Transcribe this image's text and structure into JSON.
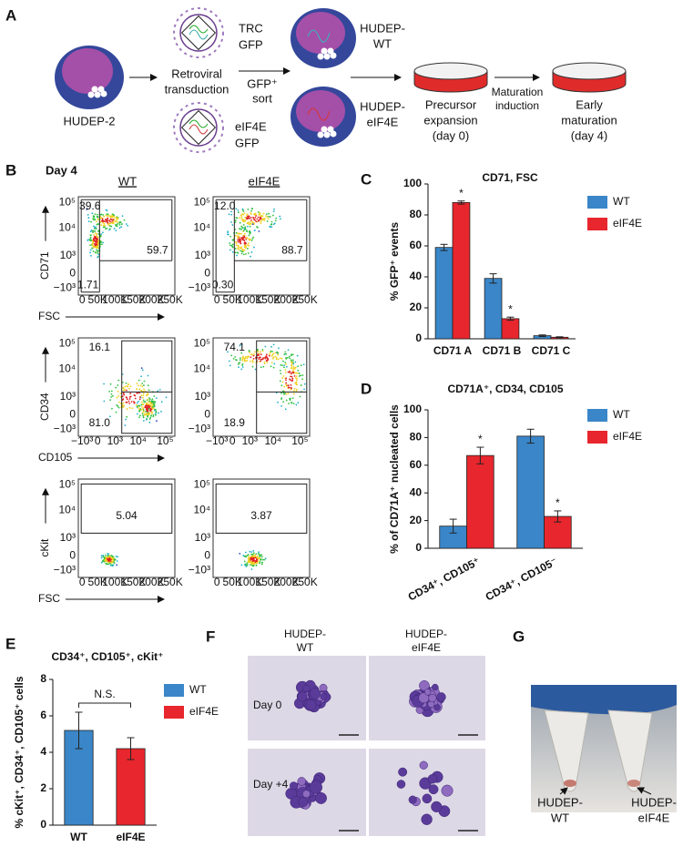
{
  "figure": {
    "panel_labels": [
      "A",
      "B",
      "C",
      "D",
      "E",
      "F",
      "G"
    ],
    "schematic": {
      "start": "HUDEP-2",
      "virus_wt": [
        "TRC",
        "GFP"
      ],
      "transduction": [
        "Retroviral",
        "transduction"
      ],
      "virus_eif": [
        "eIF4E",
        "GFP"
      ],
      "sort": [
        "GFP⁺",
        "sort"
      ],
      "cell_wt": [
        "HUDEP-",
        "WT"
      ],
      "cell_eif": [
        "HUDEP-",
        "eIF4E"
      ],
      "expansion": [
        "Precursor",
        "expansion",
        "(day 0)"
      ],
      "maturation": [
        "Maturation",
        "induction"
      ],
      "early": [
        "Early",
        "maturation",
        "(day 4)"
      ]
    },
    "flow": {
      "title": "Day 4",
      "columns": [
        "WT",
        "eIF4E"
      ],
      "rows": [
        {
          "y_label": "CD71",
          "x_label": "FSC",
          "yticks": [
            "10⁵",
            "10⁴",
            "10³",
            "0",
            "−10³"
          ],
          "xticks": [
            "0",
            "50K",
            "100K",
            "150K",
            "200K",
            "250K"
          ],
          "gates": [
            [
              "39.6",
              "59.7",
              "1.71"
            ],
            [
              "12.0",
              "88.7",
              "0.30"
            ]
          ]
        },
        {
          "y_label": "CD34",
          "x_label": "CD105",
          "yticks": [
            "10⁵",
            "10⁴",
            "10³",
            "0",
            "−10³"
          ],
          "xticks": [
            "−10³",
            "0",
            "10³",
            "10⁴",
            "10⁵"
          ],
          "gates": [
            [
              "16.1",
              "81.0"
            ],
            [
              "74.1",
              "18.9"
            ]
          ]
        },
        {
          "y_label": "cKit",
          "x_label": "FSC",
          "yticks": [
            "10⁵",
            "10⁴",
            "10³",
            "0",
            "−10³"
          ],
          "xticks": [
            "0",
            "50K",
            "100K",
            "150K",
            "200K",
            "250K"
          ],
          "gates": [
            [
              "5.04"
            ],
            [
              "3.87"
            ]
          ]
        }
      ]
    },
    "micrographs": {
      "columns": [
        [
          "HUDEP-",
          "WT"
        ],
        [
          "HUDEP-",
          "eIF4E"
        ]
      ],
      "rows": [
        "Day 0",
        "Day +4"
      ]
    },
    "tubes": {
      "labels": [
        [
          "HUDEP-",
          "WT"
        ],
        [
          "HUDEP-",
          "eIF4E"
        ]
      ]
    }
  },
  "chart_data": [
    {
      "type": "bar",
      "title": "CD71, FSC",
      "y_label": "% GFP⁺ events",
      "categories": [
        "CD71 A",
        "CD71 B",
        "CD71 C"
      ],
      "series": [
        {
          "name": "WT",
          "color": "#3a86c8",
          "values": [
            59,
            39,
            2
          ],
          "errors": [
            2,
            3,
            0.5
          ]
        },
        {
          "name": "eIF4E",
          "color": "#e8262d",
          "values": [
            88,
            13,
            1
          ],
          "errors": [
            1,
            1,
            0.3
          ]
        }
      ],
      "annotations": [
        {
          "text": "*",
          "series": 1,
          "category": 0
        },
        {
          "text": "*",
          "series": 1,
          "category": 1
        }
      ],
      "ylim": [
        0,
        100
      ],
      "yticks": [
        0,
        20,
        40,
        60,
        80,
        100
      ]
    },
    {
      "type": "bar",
      "title": "CD71A⁺, CD34, CD105",
      "y_label": "% of CD71A⁺ nucleated cells",
      "categories": [
        "CD34⁺, CD105⁺",
        "CD34⁺, CD105⁻"
      ],
      "series": [
        {
          "name": "WT",
          "color": "#3a86c8",
          "values": [
            16,
            81
          ],
          "errors": [
            5,
            5
          ]
        },
        {
          "name": "eIF4E",
          "color": "#e8262d",
          "values": [
            67,
            23
          ],
          "errors": [
            6,
            4
          ]
        }
      ],
      "annotations": [
        {
          "text": "*",
          "series": 1,
          "category": 0
        },
        {
          "text": "*",
          "series": 1,
          "category": 1
        }
      ],
      "ylim": [
        0,
        100
      ],
      "yticks": [
        0,
        20,
        40,
        60,
        80,
        100
      ]
    },
    {
      "type": "bar",
      "title": "CD34⁺, CD105⁺, cKit⁺",
      "y_label": "% cKit⁺, CD34⁺, CD105⁺ cells",
      "categories": [
        "WT",
        "eIF4E"
      ],
      "values": [
        5.2,
        4.2
      ],
      "errors": [
        1.0,
        0.6
      ],
      "colors": [
        "#3a86c8",
        "#e8262d"
      ],
      "annotations": [
        {
          "text": "N.S."
        }
      ],
      "ylim": [
        0,
        8
      ],
      "yticks": [
        0,
        2,
        4,
        6,
        8
      ]
    }
  ]
}
